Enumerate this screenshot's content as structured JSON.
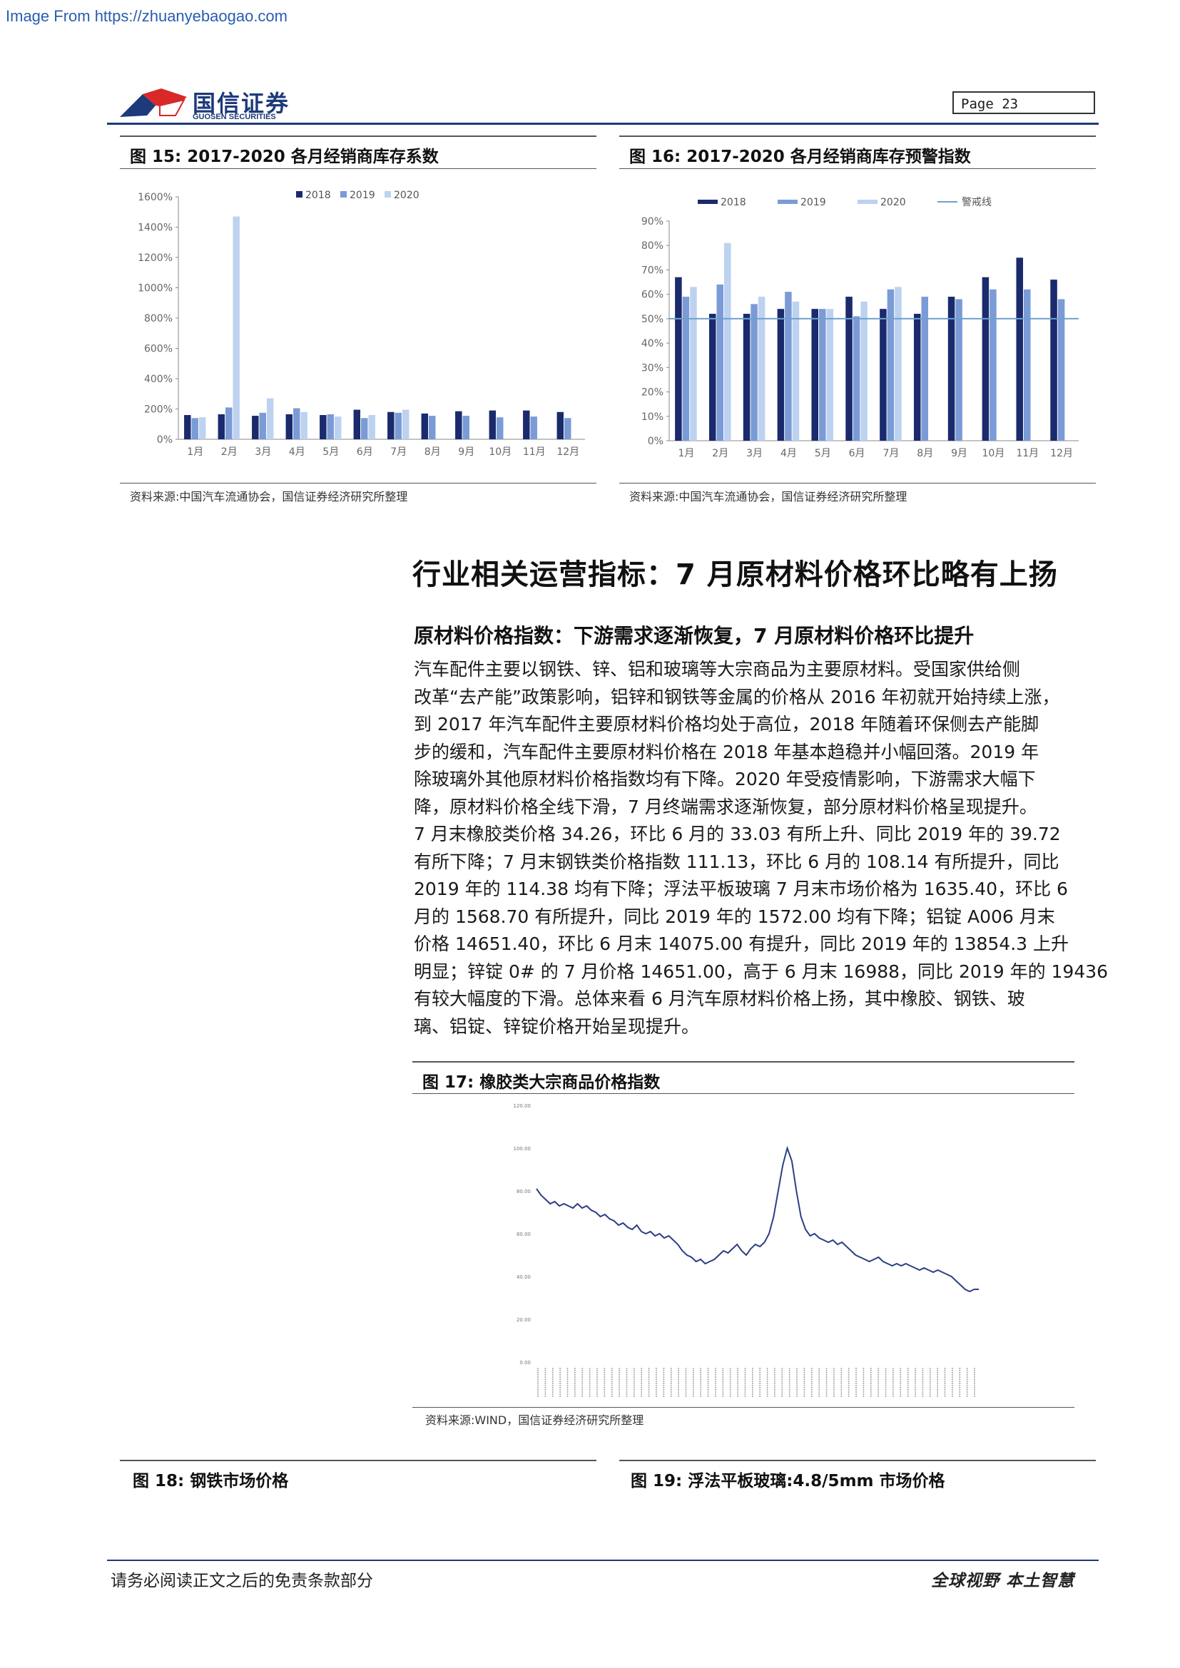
{
  "source_link": "Image From https://zhuanyebaogao.com",
  "header": {
    "logo_cn": "国信证券",
    "logo_en": "GUOSEN SECURITIES",
    "page_label": "Page  23"
  },
  "fig15": {
    "title": "图 15:  2017-2020 各月经销商库存系数",
    "source": "资料来源:中国汽车流通协会，国信证券经济研究所整理",
    "chart_data": {
      "type": "bar",
      "categories": [
        "1月",
        "2月",
        "3月",
        "4月",
        "5月",
        "6月",
        "7月",
        "8月",
        "9月",
        "10月",
        "11月",
        "12月"
      ],
      "series": [
        {
          "name": "2018",
          "values": [
            160,
            165,
            155,
            165,
            160,
            195,
            180,
            170,
            185,
            190,
            190,
            180
          ]
        },
        {
          "name": "2019",
          "values": [
            140,
            210,
            175,
            205,
            165,
            140,
            175,
            155,
            155,
            145,
            150,
            140
          ]
        },
        {
          "name": "2020",
          "values": [
            145,
            1470,
            270,
            180,
            150,
            160,
            195,
            null,
            null,
            null,
            null,
            null
          ]
        }
      ],
      "ylim": [
        0,
        1600
      ],
      "yticks": [
        "0%",
        "200%",
        "400%",
        "600%",
        "800%",
        "1000%",
        "1200%",
        "1400%",
        "1600%"
      ],
      "colors": [
        "#1a2a6c",
        "#7a9bd6",
        "#bcd2f0"
      ],
      "legend_position": "top-center"
    }
  },
  "fig16": {
    "title": "图 16:  2017-2020 各月经销商库存预警指数",
    "source": "资料来源:中国汽车流通协会，国信证券经济研究所整理",
    "chart_data": {
      "type": "bar",
      "categories": [
        "1月",
        "2月",
        "3月",
        "4月",
        "5月",
        "6月",
        "7月",
        "8月",
        "9月",
        "10月",
        "11月",
        "12月"
      ],
      "series": [
        {
          "name": "2018",
          "values": [
            67,
            52,
            52,
            54,
            54,
            59,
            54,
            52,
            59,
            67,
            75,
            66
          ]
        },
        {
          "name": "2019",
          "values": [
            59,
            64,
            56,
            61,
            54,
            51,
            62,
            59,
            58,
            62,
            62,
            58
          ]
        },
        {
          "name": "2020",
          "values": [
            63,
            81,
            59,
            57,
            54,
            57,
            63,
            null,
            null,
            null,
            null,
            null
          ]
        },
        {
          "name": "警戒线",
          "values": [
            50,
            50,
            50,
            50,
            50,
            50,
            50,
            50,
            50,
            50,
            50,
            50
          ]
        }
      ],
      "ylim": [
        0,
        90
      ],
      "yticks": [
        "0%",
        "10%",
        "20%",
        "30%",
        "40%",
        "50%",
        "60%",
        "70%",
        "80%",
        "90%"
      ],
      "colors": [
        "#1a2a6c",
        "#7a9bd6",
        "#bcd2f0",
        "#6fa0cf"
      ],
      "legend_position": "top"
    }
  },
  "section": {
    "h1": "行业相关运营指标：7 月原材料价格环比略有上扬",
    "h2": "原材料价格指数：下游需求逐渐恢复，7 月原材料价格环比提升",
    "para_lines": [
      "汽车配件主要以钢铁、锌、铝和玻璃等大宗商品为主要原材料。受国家供给侧",
      "改革“去产能”政策影响，铝锌和钢铁等金属的价格从 2016 年初就开始持续上涨，",
      "到 2017 年汽车配件主要原材料价格均处于高位，2018 年随着环保侧去产能脚",
      "步的缓和，汽车配件主要原材料价格在 2018 年基本趋稳并小幅回落。2019 年",
      "除玻璃外其他原材料价格指数均有下降。2020 年受疫情影响，下游需求大幅下",
      "降，原材料价格全线下滑，7 月终端需求逐渐恢复，部分原材料价格呈现提升。",
      "7 月末橡胶类价格 34.26，环比 6 月的 33.03 有所上升、同比 2019 年的 39.72",
      "有所下降；7 月末钢铁类价格指数 111.13，环比 6 月的 108.14 有所提升，同比",
      "2019 年的 114.38 均有下降；浮法平板玻璃 7 月末市场价格为 1635.40，环比 6",
      "月的 1568.70 有所提升，同比 2019 年的 1572.00 均有下降；铝锭 A006 月末",
      "价格 14651.40，环比 6 月末 14075.00 有提升，同比 2019 年的 13854.3 上升",
      "明显；锌锭 0# 的 7 月价格 14651.00，高于 6 月末 16988，同比 2019 年的 19436",
      "有较大幅度的下滑。总体来看 6 月汽车原材料价格上扬，其中橡胶、钢铁、玻",
      "璃、铝锭、锌锭价格开始呈现提升。"
    ]
  },
  "fig17": {
    "title": "图 17:  橡胶类大宗商品价格指数",
    "source": "资料来源:WIND，国信证券经济研究所整理",
    "chart_data": {
      "type": "line",
      "yticks": [
        "0.00",
        "20.00",
        "40.00",
        "60.00",
        "80.00",
        "100.00",
        "120.00"
      ],
      "ylim": [
        0,
        120
      ],
      "values": [
        81,
        78,
        76,
        74,
        75,
        73,
        74,
        73,
        72,
        74,
        72,
        73,
        71,
        70,
        68,
        69,
        67,
        66,
        64,
        65,
        63,
        62,
        64,
        61,
        60,
        61,
        59,
        60,
        58,
        59,
        57,
        55,
        52,
        50,
        49,
        47,
        48,
        46,
        47,
        48,
        50,
        52,
        51,
        53,
        55,
        52,
        50,
        53,
        55,
        54,
        56,
        60,
        68,
        80,
        92,
        100,
        94,
        80,
        68,
        62,
        59,
        60,
        58,
        57,
        56,
        57,
        55,
        56,
        54,
        52,
        50,
        49,
        48,
        47,
        48,
        49,
        47,
        46,
        45,
        46,
        45,
        46,
        45,
        44,
        43,
        44,
        43,
        42,
        43,
        42,
        41,
        40,
        38,
        36,
        34,
        33,
        34,
        34
      ],
      "color": "#2b3f86"
    }
  },
  "fig18": {
    "title": "图 18:  钢铁市场价格"
  },
  "fig19": {
    "title": "图 19:  浮法平板玻璃:4.8/5mm 市场价格"
  },
  "footer": {
    "left": "请务必阅读正文之后的免责条款部分",
    "right": "全球视野  本土智慧"
  }
}
